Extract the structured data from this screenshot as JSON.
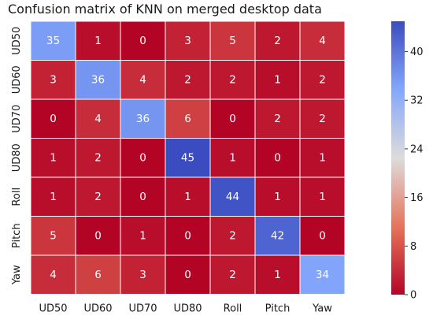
{
  "chart_data": {
    "type": "heatmap",
    "title": "Confusion matrix of KNN on merged desktop data",
    "rows": [
      "UD50",
      "UD60",
      "UD70",
      "UD80",
      "Roll",
      "Pitch",
      "Yaw"
    ],
    "cols": [
      "UD50",
      "UD60",
      "UD70",
      "UD80",
      "Roll",
      "Pitch",
      "Yaw"
    ],
    "values": [
      [
        35,
        1,
        0,
        3,
        5,
        2,
        4
      ],
      [
        3,
        36,
        4,
        2,
        2,
        1,
        2
      ],
      [
        0,
        4,
        36,
        6,
        0,
        2,
        2
      ],
      [
        1,
        2,
        0,
        45,
        1,
        0,
        1
      ],
      [
        1,
        2,
        0,
        1,
        44,
        1,
        1
      ],
      [
        5,
        0,
        1,
        0,
        2,
        42,
        0
      ],
      [
        4,
        6,
        3,
        0,
        2,
        1,
        34
      ]
    ],
    "colorbar": {
      "range": [
        0,
        45
      ],
      "ticks": [
        0,
        8,
        16,
        24,
        32,
        40
      ],
      "colormap": "coolwarm_r"
    }
  }
}
